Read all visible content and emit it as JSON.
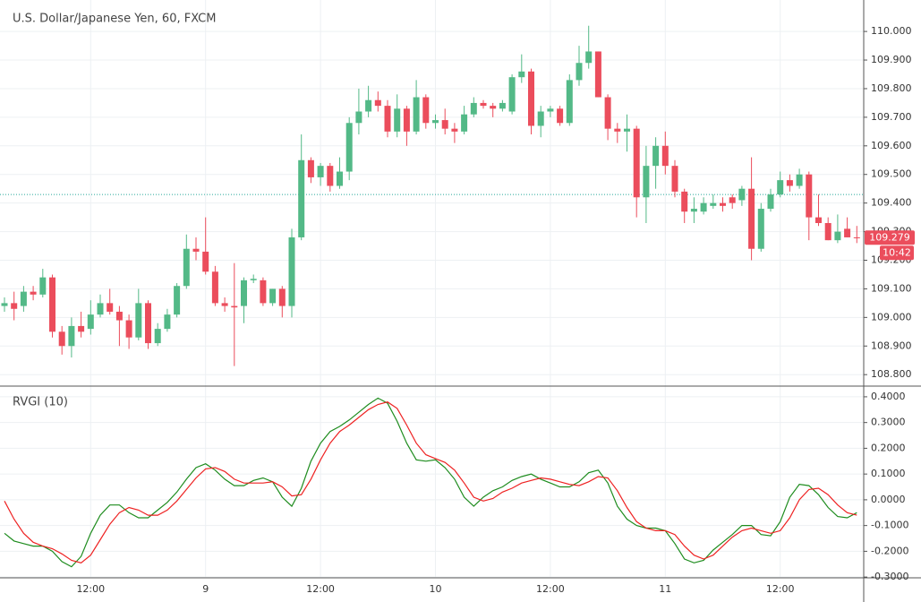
{
  "chart_data": [
    {
      "type": "candlestick",
      "title": "U.S. Dollar/Japanese Yen, 60, FXCM",
      "categories": [
        null,
        null,
        null,
        null,
        null,
        null,
        null,
        null,
        null,
        "12:00",
        null,
        null,
        null,
        null,
        null,
        null,
        null,
        null,
        null,
        null,
        null,
        "9",
        null,
        null,
        null,
        null,
        null,
        null,
        null,
        null,
        null,
        null,
        null,
        "12:00",
        null,
        null,
        null,
        null,
        null,
        null,
        null,
        null,
        null,
        null,
        null,
        "10",
        null,
        null,
        null,
        null,
        null,
        null,
        null,
        null,
        null,
        null,
        null,
        "12:00",
        null,
        null,
        null,
        null,
        null,
        null,
        null,
        null,
        null,
        null,
        null,
        "11",
        null,
        null,
        null,
        null,
        null,
        null,
        null,
        null,
        null,
        null,
        null,
        "12:00",
        null,
        null,
        null,
        null,
        null,
        null,
        null,
        null
      ],
      "open": [
        109.04,
        109.05,
        109.04,
        109.09,
        109.08,
        109.14,
        108.95,
        108.9,
        108.97,
        108.96,
        109.01,
        109.05,
        109.02,
        108.99,
        108.93,
        109.05,
        108.91,
        108.96,
        109.01,
        109.11,
        109.24,
        109.23,
        109.16,
        109.05,
        109.04,
        109.04,
        109.13,
        109.13,
        109.05,
        109.1,
        109.04,
        109.28,
        109.55,
        109.49,
        109.53,
        109.46,
        109.51,
        109.68,
        109.72,
        109.76,
        109.74,
        109.65,
        109.73,
        109.65,
        109.77,
        109.68,
        109.69,
        109.66,
        109.65,
        109.71,
        109.75,
        109.74,
        109.73,
        109.72,
        109.84,
        109.86,
        109.67,
        109.72,
        109.73,
        109.68,
        109.83,
        109.89,
        109.93,
        109.77,
        109.66,
        109.65,
        109.66,
        109.42,
        109.53,
        109.6,
        109.53,
        109.44,
        109.37,
        109.37,
        109.39,
        109.4,
        109.42,
        109.41,
        109.45,
        109.24,
        109.38,
        109.43,
        109.48,
        109.46,
        109.5,
        109.35,
        109.33,
        109.27,
        109.31,
        109.28
      ],
      "high": [
        109.07,
        109.09,
        109.11,
        109.11,
        109.17,
        109.15,
        108.97,
        109.0,
        109.02,
        109.06,
        109.08,
        109.1,
        109.04,
        109.01,
        109.1,
        109.06,
        108.98,
        109.03,
        109.12,
        109.29,
        109.28,
        109.35,
        109.18,
        109.07,
        109.19,
        109.14,
        109.15,
        109.14,
        109.1,
        109.11,
        109.31,
        109.64,
        109.56,
        109.54,
        109.54,
        109.56,
        109.7,
        109.8,
        109.81,
        109.79,
        109.76,
        109.78,
        109.74,
        109.83,
        109.78,
        109.71,
        109.73,
        109.68,
        109.74,
        109.77,
        109.76,
        109.75,
        109.76,
        109.85,
        109.92,
        109.87,
        109.74,
        109.74,
        109.74,
        109.85,
        109.95,
        110.02,
        109.93,
        109.78,
        109.68,
        109.71,
        109.67,
        109.6,
        109.63,
        109.65,
        109.55,
        109.45,
        109.42,
        109.42,
        109.43,
        109.42,
        109.43,
        109.46,
        109.56,
        109.4,
        109.45,
        109.51,
        109.5,
        109.52,
        109.51,
        109.43,
        109.35,
        109.36,
        109.35,
        109.32
      ],
      "low": [
        109.02,
        108.99,
        109.02,
        109.06,
        109.07,
        108.93,
        108.87,
        108.86,
        108.93,
        108.94,
        109.0,
        109.01,
        108.9,
        108.89,
        108.92,
        108.89,
        108.9,
        108.95,
        109.0,
        109.1,
        109.2,
        109.15,
        109.04,
        109.02,
        108.83,
        108.98,
        109.12,
        109.04,
        109.04,
        109.0,
        109.0,
        109.27,
        109.47,
        109.46,
        109.44,
        109.45,
        109.48,
        109.64,
        109.7,
        109.72,
        109.63,
        109.63,
        109.6,
        109.64,
        109.66,
        109.66,
        109.64,
        109.61,
        109.64,
        109.7,
        109.73,
        109.7,
        109.72,
        109.71,
        109.82,
        109.64,
        109.63,
        109.7,
        109.67,
        109.67,
        109.81,
        109.87,
        109.77,
        109.62,
        109.61,
        109.58,
        109.35,
        109.33,
        109.45,
        109.5,
        109.42,
        109.33,
        109.33,
        109.36,
        109.38,
        109.37,
        109.38,
        109.39,
        109.2,
        109.23,
        109.37,
        109.42,
        109.44,
        109.45,
        109.27,
        109.32,
        109.27,
        109.26,
        109.28,
        109.26
      ],
      "close": [
        109.05,
        109.03,
        109.09,
        109.08,
        109.14,
        108.95,
        108.9,
        108.97,
        108.95,
        109.01,
        109.05,
        109.02,
        108.99,
        108.93,
        109.05,
        108.91,
        108.96,
        109.01,
        109.11,
        109.24,
        109.23,
        109.16,
        109.05,
        109.04,
        109.035,
        109.13,
        109.135,
        109.05,
        109.1,
        109.04,
        109.28,
        109.55,
        109.49,
        109.53,
        109.46,
        109.51,
        109.68,
        109.72,
        109.76,
        109.74,
        109.65,
        109.73,
        109.65,
        109.77,
        109.68,
        109.69,
        109.66,
        109.65,
        109.71,
        109.75,
        109.74,
        109.73,
        109.75,
        109.84,
        109.86,
        109.67,
        109.72,
        109.73,
        109.68,
        109.83,
        109.89,
        109.93,
        109.77,
        109.66,
        109.65,
        109.66,
        109.42,
        109.53,
        109.6,
        109.53,
        109.44,
        109.37,
        109.38,
        109.4,
        109.4,
        109.39,
        109.4,
        109.45,
        109.24,
        109.38,
        109.43,
        109.48,
        109.46,
        109.5,
        109.35,
        109.33,
        109.27,
        109.3,
        109.28,
        109.279
      ],
      "up_color": "#53b987",
      "down_color": "#eb4d5c",
      "ylim": [
        108.763,
        110.11
      ],
      "yticks": [
        {
          "value": 108.8,
          "label": "108.800"
        },
        {
          "value": 108.9,
          "label": "108.900"
        },
        {
          "value": 109.0,
          "label": "109.000"
        },
        {
          "value": 109.1,
          "label": "109.100"
        },
        {
          "value": 109.2,
          "label": "109.200"
        },
        {
          "value": 109.3,
          "label": "109.300"
        },
        {
          "value": 109.4,
          "label": "109.400"
        },
        {
          "value": 109.5,
          "label": "109.500"
        },
        {
          "value": 109.6,
          "label": "109.600"
        },
        {
          "value": 109.7,
          "label": "109.700"
        },
        {
          "value": 109.8,
          "label": "109.800"
        },
        {
          "value": 109.9,
          "label": "109.900"
        },
        {
          "value": 110.0,
          "label": "110.000"
        }
      ],
      "grid": true,
      "reference_line": {
        "value": 109.43,
        "color": "#26a69a"
      },
      "last_price": {
        "value": 109.279,
        "label": "109.279",
        "color": "#eb4d5c"
      },
      "countdown": "10:42"
    },
    {
      "type": "line",
      "title": "RVGI (10)",
      "series": [
        {
          "color": "#1e8c1e",
          "values": [
            -0.13,
            -0.16,
            -0.17,
            -0.18,
            -0.18,
            -0.2,
            -0.24,
            -0.26,
            -0.22,
            -0.13,
            -0.06,
            -0.02,
            -0.02,
            -0.05,
            -0.07,
            -0.07,
            -0.04,
            -0.01,
            0.03,
            0.08,
            0.125,
            0.14,
            0.115,
            0.08,
            0.055,
            0.055,
            0.075,
            0.085,
            0.07,
            0.01,
            -0.025,
            0.045,
            0.15,
            0.22,
            0.265,
            0.285,
            0.31,
            0.34,
            0.37,
            0.395,
            0.375,
            0.305,
            0.22,
            0.155,
            0.15,
            0.155,
            0.125,
            0.08,
            0.01,
            -0.025,
            0.01,
            0.035,
            0.05,
            0.075,
            0.09,
            0.1,
            0.08,
            0.065,
            0.05,
            0.05,
            0.07,
            0.105,
            0.115,
            0.065,
            -0.025,
            -0.075,
            -0.1,
            -0.11,
            -0.11,
            -0.12,
            -0.17,
            -0.23,
            -0.245,
            -0.235,
            -0.195,
            -0.165,
            -0.135,
            -0.1,
            -0.1,
            -0.135,
            -0.14,
            -0.085,
            0.01,
            0.06,
            0.055,
            0.02,
            -0.03,
            -0.065,
            -0.07,
            -0.05
          ]
        },
        {
          "color": "#ee2222",
          "values": [
            -0.005,
            -0.075,
            -0.13,
            -0.165,
            -0.18,
            -0.19,
            -0.21,
            -0.235,
            -0.245,
            -0.215,
            -0.155,
            -0.095,
            -0.05,
            -0.03,
            -0.04,
            -0.06,
            -0.06,
            -0.04,
            -0.005,
            0.04,
            0.085,
            0.12,
            0.125,
            0.11,
            0.08,
            0.065,
            0.065,
            0.065,
            0.07,
            0.05,
            0.015,
            0.02,
            0.08,
            0.155,
            0.22,
            0.265,
            0.29,
            0.32,
            0.35,
            0.37,
            0.38,
            0.355,
            0.29,
            0.22,
            0.175,
            0.16,
            0.145,
            0.115,
            0.065,
            0.01,
            -0.005,
            0.005,
            0.03,
            0.045,
            0.065,
            0.075,
            0.085,
            0.08,
            0.07,
            0.06,
            0.055,
            0.07,
            0.09,
            0.085,
            0.035,
            -0.03,
            -0.085,
            -0.11,
            -0.12,
            -0.12,
            -0.135,
            -0.18,
            -0.215,
            -0.23,
            -0.215,
            -0.18,
            -0.145,
            -0.12,
            -0.11,
            -0.12,
            -0.13,
            -0.12,
            -0.07,
            0.0,
            0.04,
            0.045,
            0.02,
            -0.02,
            -0.05,
            -0.06
          ]
        }
      ],
      "ylim": [
        -0.303,
        0.438
      ],
      "yticks": [
        {
          "value": -0.3,
          "label": "-0.3000"
        },
        {
          "value": -0.2,
          "label": "-0.2000"
        },
        {
          "value": -0.1,
          "label": "-0.1000"
        },
        {
          "value": 0,
          "label": "0.0000"
        },
        {
          "value": 0.1,
          "label": "0.1000"
        },
        {
          "value": 0.2,
          "label": "0.2000"
        },
        {
          "value": 0.3,
          "label": "0.3000"
        },
        {
          "value": 0.4,
          "label": "0.4000"
        }
      ],
      "grid": true
    }
  ]
}
